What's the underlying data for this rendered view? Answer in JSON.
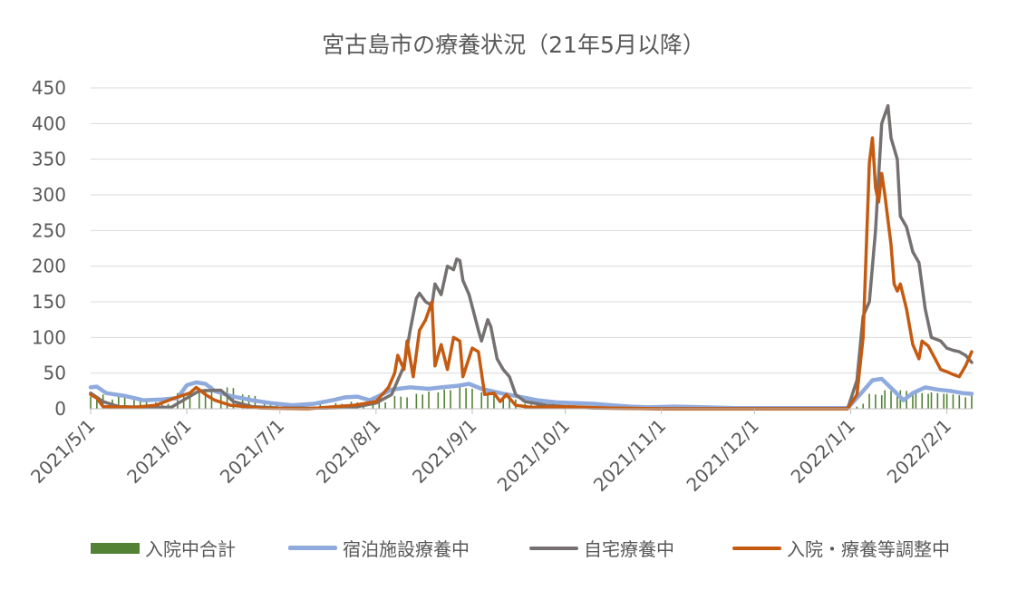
{
  "chart_data": {
    "type": "line",
    "title": "宮古島市の療養状況（21年5月以降）",
    "ylim": [
      0,
      450
    ],
    "yticks": [
      0,
      50,
      100,
      150,
      200,
      250,
      300,
      350,
      400,
      450
    ],
    "ytick_labels": [
      "0",
      "50",
      "100",
      "150",
      "200",
      "250",
      "300",
      "350",
      "400",
      "450"
    ],
    "xlim": [
      "2021-05-01",
      "2022-02-09"
    ],
    "xticks": [
      "2021-05-01",
      "2021-06-01",
      "2021-07-01",
      "2021-08-01",
      "2021-09-01",
      "2021-10-01",
      "2021-11-01",
      "2021-12-01",
      "2022-01-01",
      "2022-02-01"
    ],
    "xtick_labels": [
      "2021/5/1",
      "2021/6/1",
      "2021/7/1",
      "2021/8/1",
      "2021/9/1",
      "2021/10/1",
      "2021/11/1",
      "2021/12/1",
      "2022/1/1",
      "2022/2/1"
    ],
    "grid": true,
    "legend_position": "bottom",
    "series": [
      {
        "name": "入院中合計",
        "kind": "bar",
        "color": "#548235",
        "points": [
          [
            "2021-05-01",
            18
          ],
          [
            "2021-05-08",
            15
          ],
          [
            "2021-05-15",
            10
          ],
          [
            "2021-05-22",
            8
          ],
          [
            "2021-05-29",
            22
          ],
          [
            "2021-06-05",
            30
          ],
          [
            "2021-06-12",
            28
          ],
          [
            "2021-06-19",
            18
          ],
          [
            "2021-06-26",
            10
          ],
          [
            "2021-07-03",
            5
          ],
          [
            "2021-07-10",
            4
          ],
          [
            "2021-07-17",
            6
          ],
          [
            "2021-07-24",
            8
          ],
          [
            "2021-07-31",
            10
          ],
          [
            "2021-08-07",
            18
          ],
          [
            "2021-08-14",
            22
          ],
          [
            "2021-08-21",
            25
          ],
          [
            "2021-08-28",
            28
          ],
          [
            "2021-09-04",
            22
          ],
          [
            "2021-09-11",
            15
          ],
          [
            "2021-09-18",
            8
          ],
          [
            "2021-09-25",
            5
          ],
          [
            "2021-10-02",
            4
          ],
          [
            "2021-10-09",
            3
          ],
          [
            "2021-10-16",
            2
          ],
          [
            "2021-10-23",
            1
          ],
          [
            "2022-01-03",
            5
          ],
          [
            "2022-01-07",
            20
          ],
          [
            "2022-01-12",
            25
          ],
          [
            "2022-01-17",
            25
          ],
          [
            "2022-01-22",
            22
          ],
          [
            "2022-01-27",
            22
          ],
          [
            "2022-02-01",
            20
          ],
          [
            "2022-02-07",
            18
          ]
        ]
      },
      {
        "name": "宿泊施設療養中",
        "kind": "line",
        "color": "#8faadc",
        "points": [
          [
            "2021-05-01",
            30
          ],
          [
            "2021-05-03",
            31
          ],
          [
            "2021-05-06",
            22
          ],
          [
            "2021-05-12",
            18
          ],
          [
            "2021-05-18",
            12
          ],
          [
            "2021-05-24",
            13
          ],
          [
            "2021-05-29",
            15
          ],
          [
            "2021-06-01",
            33
          ],
          [
            "2021-06-04",
            37
          ],
          [
            "2021-06-07",
            35
          ],
          [
            "2021-06-10",
            25
          ],
          [
            "2021-06-15",
            18
          ],
          [
            "2021-06-22",
            12
          ],
          [
            "2021-06-28",
            8
          ],
          [
            "2021-07-05",
            5
          ],
          [
            "2021-07-12",
            7
          ],
          [
            "2021-07-18",
            12
          ],
          [
            "2021-07-22",
            16
          ],
          [
            "2021-07-26",
            17
          ],
          [
            "2021-07-30",
            12
          ],
          [
            "2021-08-02",
            18
          ],
          [
            "2021-08-06",
            27
          ],
          [
            "2021-08-12",
            30
          ],
          [
            "2021-08-18",
            28
          ],
          [
            "2021-08-22",
            30
          ],
          [
            "2021-08-27",
            32
          ],
          [
            "2021-08-31",
            35
          ],
          [
            "2021-09-04",
            28
          ],
          [
            "2021-09-10",
            22
          ],
          [
            "2021-09-16",
            17
          ],
          [
            "2021-09-22",
            12
          ],
          [
            "2021-09-28",
            9
          ],
          [
            "2021-10-04",
            8
          ],
          [
            "2021-10-10",
            7
          ],
          [
            "2021-10-16",
            5
          ],
          [
            "2021-10-22",
            3
          ],
          [
            "2021-10-28",
            2
          ],
          [
            "2021-11-05",
            3
          ],
          [
            "2021-11-15",
            2
          ],
          [
            "2021-11-25",
            1
          ],
          [
            "2021-12-10",
            1
          ],
          [
            "2021-12-31",
            1
          ],
          [
            "2022-01-04",
            20
          ],
          [
            "2022-01-08",
            40
          ],
          [
            "2022-01-11",
            42
          ],
          [
            "2022-01-15",
            25
          ],
          [
            "2022-01-18",
            12
          ],
          [
            "2022-01-21",
            22
          ],
          [
            "2022-01-25",
            30
          ],
          [
            "2022-01-29",
            27
          ],
          [
            "2022-02-02",
            25
          ],
          [
            "2022-02-06",
            22
          ],
          [
            "2022-02-09",
            21
          ]
        ]
      },
      {
        "name": "自宅療養中",
        "kind": "line",
        "color": "#767171",
        "points": [
          [
            "2021-05-01",
            22
          ],
          [
            "2021-05-05",
            10
          ],
          [
            "2021-05-10",
            3
          ],
          [
            "2021-05-20",
            2
          ],
          [
            "2021-05-27",
            2
          ],
          [
            "2021-06-01",
            15
          ],
          [
            "2021-06-05",
            25
          ],
          [
            "2021-06-12",
            26
          ],
          [
            "2021-06-16",
            10
          ],
          [
            "2021-06-22",
            3
          ],
          [
            "2021-07-01",
            1
          ],
          [
            "2021-07-15",
            1
          ],
          [
            "2021-07-25",
            2
          ],
          [
            "2021-08-01",
            8
          ],
          [
            "2021-08-06",
            20
          ],
          [
            "2021-08-10",
            60
          ],
          [
            "2021-08-12",
            110
          ],
          [
            "2021-08-14",
            155
          ],
          [
            "2021-08-15",
            162
          ],
          [
            "2021-08-17",
            150
          ],
          [
            "2021-08-19",
            145
          ],
          [
            "2021-08-20",
            175
          ],
          [
            "2021-08-22",
            160
          ],
          [
            "2021-08-24",
            200
          ],
          [
            "2021-08-26",
            195
          ],
          [
            "2021-08-27",
            210
          ],
          [
            "2021-08-28",
            208
          ],
          [
            "2021-08-29",
            180
          ],
          [
            "2021-08-31",
            160
          ],
          [
            "2021-09-03",
            110
          ],
          [
            "2021-09-04",
            95
          ],
          [
            "2021-09-06",
            125
          ],
          [
            "2021-09-07",
            115
          ],
          [
            "2021-09-09",
            70
          ],
          [
            "2021-09-11",
            55
          ],
          [
            "2021-09-13",
            45
          ],
          [
            "2021-09-15",
            20
          ],
          [
            "2021-09-18",
            10
          ],
          [
            "2021-09-25",
            5
          ],
          [
            "2021-10-01",
            3
          ],
          [
            "2021-10-10",
            1
          ],
          [
            "2021-11-01",
            0
          ],
          [
            "2021-12-31",
            0
          ],
          [
            "2022-01-03",
            40
          ],
          [
            "2022-01-05",
            130
          ],
          [
            "2022-01-07",
            150
          ],
          [
            "2022-01-09",
            250
          ],
          [
            "2022-01-11",
            400
          ],
          [
            "2022-01-13",
            425
          ],
          [
            "2022-01-14",
            380
          ],
          [
            "2022-01-16",
            350
          ],
          [
            "2022-01-17",
            270
          ],
          [
            "2022-01-19",
            255
          ],
          [
            "2022-01-21",
            220
          ],
          [
            "2022-01-23",
            205
          ],
          [
            "2022-01-25",
            140
          ],
          [
            "2022-01-27",
            100
          ],
          [
            "2022-01-30",
            95
          ],
          [
            "2022-02-01",
            85
          ],
          [
            "2022-02-03",
            82
          ],
          [
            "2022-02-05",
            80
          ],
          [
            "2022-02-07",
            75
          ],
          [
            "2022-02-09",
            65
          ]
        ]
      },
      {
        "name": "入院・療養等調整中",
        "kind": "line",
        "color": "#c55a11",
        "points": [
          [
            "2021-05-01",
            20
          ],
          [
            "2021-05-03",
            15
          ],
          [
            "2021-05-05",
            3
          ],
          [
            "2021-05-15",
            2
          ],
          [
            "2021-05-22",
            5
          ],
          [
            "2021-05-28",
            15
          ],
          [
            "2021-06-02",
            22
          ],
          [
            "2021-06-04",
            30
          ],
          [
            "2021-06-07",
            20
          ],
          [
            "2021-06-10",
            12
          ],
          [
            "2021-06-15",
            5
          ],
          [
            "2021-06-25",
            1
          ],
          [
            "2021-07-10",
            0
          ],
          [
            "2021-07-25",
            5
          ],
          [
            "2021-08-01",
            10
          ],
          [
            "2021-08-05",
            30
          ],
          [
            "2021-08-07",
            50
          ],
          [
            "2021-08-08",
            75
          ],
          [
            "2021-08-10",
            55
          ],
          [
            "2021-08-11",
            95
          ],
          [
            "2021-08-13",
            45
          ],
          [
            "2021-08-15",
            110
          ],
          [
            "2021-08-17",
            125
          ],
          [
            "2021-08-19",
            150
          ],
          [
            "2021-08-20",
            60
          ],
          [
            "2021-08-22",
            90
          ],
          [
            "2021-08-24",
            55
          ],
          [
            "2021-08-26",
            100
          ],
          [
            "2021-08-28",
            95
          ],
          [
            "2021-08-29",
            45
          ],
          [
            "2021-09-01",
            85
          ],
          [
            "2021-09-03",
            80
          ],
          [
            "2021-09-05",
            20
          ],
          [
            "2021-09-08",
            22
          ],
          [
            "2021-09-10",
            10
          ],
          [
            "2021-09-12",
            20
          ],
          [
            "2021-09-15",
            5
          ],
          [
            "2021-09-20",
            2
          ],
          [
            "2021-10-01",
            3
          ],
          [
            "2021-10-15",
            1
          ],
          [
            "2021-11-01",
            0
          ],
          [
            "2021-12-31",
            0
          ],
          [
            "2022-01-03",
            20
          ],
          [
            "2022-01-05",
            100
          ],
          [
            "2022-01-07",
            345
          ],
          [
            "2022-01-08",
            380
          ],
          [
            "2022-01-09",
            310
          ],
          [
            "2022-01-10",
            290
          ],
          [
            "2022-01-11",
            330
          ],
          [
            "2022-01-12",
            300
          ],
          [
            "2022-01-14",
            230
          ],
          [
            "2022-01-15",
            175
          ],
          [
            "2022-01-16",
            165
          ],
          [
            "2022-01-17",
            175
          ],
          [
            "2022-01-19",
            140
          ],
          [
            "2022-01-21",
            90
          ],
          [
            "2022-01-23",
            70
          ],
          [
            "2022-01-24",
            95
          ],
          [
            "2022-01-26",
            88
          ],
          [
            "2022-01-28",
            72
          ],
          [
            "2022-01-30",
            55
          ],
          [
            "2022-02-01",
            52
          ],
          [
            "2022-02-03",
            48
          ],
          [
            "2022-02-05",
            45
          ],
          [
            "2022-02-07",
            60
          ],
          [
            "2022-02-09",
            80
          ]
        ]
      }
    ]
  }
}
